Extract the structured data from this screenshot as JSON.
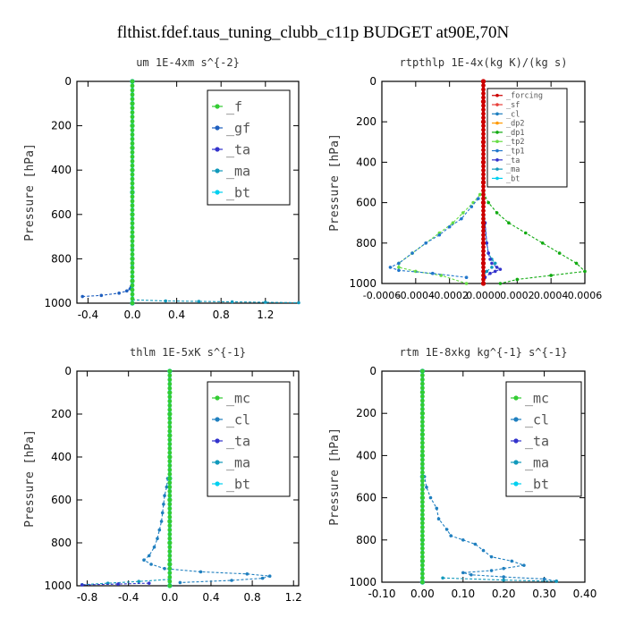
{
  "figure": {
    "title": "flthist.fdef.taus_tuning_clubb_c11p  BUDGET at90E,70N"
  },
  "colors": {
    "forcing": "#cc0000",
    "sf": "#e8403a",
    "f": "#33cc33",
    "gf": "#1f5fbf",
    "mc": "#33cc33",
    "cl": "#1f7fbf",
    "dp2": "#ff9900",
    "dp1": "#11aa11",
    "tp2": "#66dd44",
    "tp1": "#2277cc",
    "ta": "#3333cc",
    "ma": "#1199bb",
    "bt": "#00d0f0"
  },
  "chart_data": [
    {
      "type": "line",
      "title": "um  1E-4xm s^{-2}",
      "ylabel": "Pressure [hPa]",
      "xlim": [
        -0.5,
        1.5
      ],
      "ylim": [
        1000,
        0
      ],
      "xticks": [
        "-0.4",
        "0.0",
        "0.4",
        "0.8",
        "1.2"
      ],
      "xtick_values": [
        -0.4,
        0.0,
        0.4,
        0.8,
        1.2
      ],
      "yticks": [
        "0",
        "200",
        "400",
        "600",
        "800",
        "1000"
      ],
      "legend_position": "top-right",
      "legend": [
        "_f",
        "_gf",
        "_ta",
        "_ma",
        "_bt"
      ],
      "series": [
        {
          "name": "_gf",
          "color_key": "gf",
          "y": [
            970,
            965,
            955,
            945,
            935,
            925,
            915,
            905,
            895,
            880,
            860,
            830,
            800,
            750,
            700,
            600,
            500,
            400,
            300,
            200,
            100,
            0
          ],
          "x": [
            -0.45,
            -0.28,
            -0.12,
            -0.05,
            -0.02,
            -0.01,
            0,
            0,
            0,
            0,
            0,
            0,
            0,
            0,
            0,
            0,
            0,
            0,
            0,
            0,
            0,
            0
          ]
        },
        {
          "name": "_ma",
          "color_key": "ma",
          "y": [
            985,
            990,
            992,
            994,
            996,
            998
          ],
          "x": [
            0.0,
            0.3,
            0.6,
            0.9,
            1.2,
            1.5
          ]
        },
        {
          "name": "_f",
          "color_key": "f",
          "y": [
            1000,
            900,
            800,
            700,
            600,
            500,
            400,
            300,
            200,
            100,
            0
          ],
          "x": [
            0,
            0,
            0,
            0,
            0,
            0,
            0,
            0,
            0,
            0,
            0
          ]
        },
        {
          "name": "_ta",
          "color_key": "ta",
          "y": [
            1000,
            500,
            0
          ],
          "x": [
            0,
            0,
            0
          ]
        },
        {
          "name": "_bt",
          "color_key": "bt",
          "y": [
            1000,
            500,
            0
          ],
          "x": [
            0,
            0,
            0
          ]
        }
      ]
    },
    {
      "type": "line",
      "title": "rtpthlp  1E-4x(kg K)/(kg s)",
      "ylabel": "Pressure [hPa]",
      "xlim": [
        -0.0006,
        0.0006
      ],
      "ylim": [
        1000,
        0
      ],
      "xticks": [
        "-0.0006",
        "-0.0004",
        "-0.0002",
        "0.0000",
        "0.0002",
        "0.0004",
        "0.0006"
      ],
      "xtick_values": [
        -0.0006,
        -0.0004,
        -0.0002,
        0.0,
        0.0002,
        0.0004,
        0.0006
      ],
      "yticks": [
        "0",
        "200",
        "400",
        "600",
        "800",
        "1000"
      ],
      "legend_position": "top-right",
      "legend": [
        "_forcing",
        "_sf",
        "_cl",
        "_dp2",
        "_dp1",
        "_tp2",
        "_tp1",
        "_ta",
        "_ma",
        "_bt"
      ],
      "series": [
        {
          "name": "_dp1",
          "color_key": "dp1",
          "y": [
            550,
            600,
            650,
            700,
            750,
            800,
            850,
            900,
            940,
            960,
            980,
            1000
          ],
          "x": [
            0,
            3e-05,
            8e-05,
            0.00015,
            0.00025,
            0.00035,
            0.00045,
            0.00055,
            0.0006,
            0.0004,
            0.0002,
            0.0001
          ]
        },
        {
          "name": "_tp2",
          "color_key": "tp2",
          "y": [
            560,
            600,
            650,
            700,
            750,
            800,
            850,
            900,
            920,
            940,
            960,
            1000
          ],
          "x": [
            -2e-05,
            -6e-05,
            -0.00012,
            -0.00018,
            -0.00026,
            -0.00034,
            -0.00042,
            -0.0005,
            -0.0005,
            -0.0004,
            -0.00025,
            -0.0001
          ]
        },
        {
          "name": "_tp1",
          "color_key": "tp1",
          "y": [
            580,
            620,
            680,
            720,
            760,
            800,
            850,
            900,
            920,
            935,
            950,
            970
          ],
          "x": [
            -3e-05,
            -7e-05,
            -0.00013,
            -0.0002,
            -0.00026,
            -0.00034,
            -0.00042,
            -0.0005,
            -0.00055,
            -0.0005,
            -0.0003,
            -0.0001
          ]
        },
        {
          "name": "_ma",
          "color_key": "ma",
          "y": [
            600,
            700,
            800,
            850,
            880,
            900,
            920,
            940,
            960
          ],
          "x": [
            0,
            1e-05,
            2e-05,
            3e-05,
            5e-05,
            7e-05,
            5e-05,
            2e-05,
            0
          ]
        },
        {
          "name": "_ta",
          "color_key": "ta",
          "y": [
            700,
            800,
            850,
            880,
            900,
            920,
            930,
            940,
            950,
            970
          ],
          "x": [
            1e-05,
            2e-05,
            3e-05,
            4e-05,
            5e-05,
            8e-05,
            0.0001,
            7e-05,
            4e-05,
            1e-05
          ]
        },
        {
          "name": "_sf",
          "color_key": "sf",
          "y": [
            1000,
            900,
            800,
            700,
            600,
            500,
            400,
            300,
            200,
            100,
            0
          ],
          "x": [
            0,
            0,
            0,
            0,
            0,
            0,
            0,
            0,
            0,
            0,
            0
          ]
        },
        {
          "name": "_forcing",
          "color_key": "forcing",
          "y": [
            1000,
            900,
            800,
            700,
            600,
            500,
            400,
            300,
            200,
            100,
            0
          ],
          "x": [
            0,
            0,
            0,
            0,
            0,
            0,
            0,
            0,
            0,
            0,
            0
          ]
        }
      ]
    },
    {
      "type": "line",
      "title": "thlm  1E-5xK s^{-1}",
      "ylabel": "Pressure [hPa]",
      "xlim": [
        -0.9,
        1.25
      ],
      "ylim": [
        1000,
        0
      ],
      "xticks": [
        "-0.8",
        "-0.4",
        "0.0",
        "0.4",
        "0.8",
        "1.2"
      ],
      "xtick_values": [
        -0.8,
        -0.4,
        0.0,
        0.4,
        0.8,
        1.2
      ],
      "yticks": [
        "0",
        "200",
        "400",
        "600",
        "800",
        "1000"
      ],
      "legend_position": "top-right",
      "legend": [
        "_mc",
        "_cl",
        "_ta",
        "_ma",
        "_bt"
      ],
      "series": [
        {
          "name": "_cl",
          "color_key": "cl",
          "y": [
            500,
            540,
            580,
            620,
            660,
            700,
            740,
            780,
            820,
            860,
            880,
            900,
            920,
            935,
            945,
            955,
            965,
            975,
            985
          ],
          "x": [
            -0.02,
            -0.03,
            -0.05,
            -0.06,
            -0.07,
            -0.08,
            -0.1,
            -0.12,
            -0.15,
            -0.2,
            -0.25,
            -0.18,
            -0.05,
            0.3,
            0.75,
            0.97,
            0.9,
            0.6,
            0.1
          ]
        },
        {
          "name": "_ma",
          "color_key": "ma",
          "y": [
            970,
            980,
            988,
            995
          ],
          "x": [
            0,
            -0.3,
            -0.6,
            -0.85
          ]
        },
        {
          "name": "_ta",
          "color_key": "ta",
          "y": [
            988,
            992,
            996
          ],
          "x": [
            -0.2,
            -0.5,
            -0.85
          ]
        },
        {
          "name": "_mc",
          "color_key": "mc",
          "y": [
            1000,
            900,
            800,
            700,
            600,
            500,
            400,
            300,
            200,
            100,
            0
          ],
          "x": [
            0,
            0,
            0,
            0,
            0,
            0,
            0,
            0,
            0,
            0,
            0
          ]
        },
        {
          "name": "_bt",
          "color_key": "bt",
          "y": [
            1000,
            500,
            0
          ],
          "x": [
            0,
            0,
            0
          ]
        }
      ]
    },
    {
      "type": "line",
      "title": "rtm  1E-8xkg kg^{-1} s^{-1}",
      "ylabel": "Pressure [hPa]",
      "xlim": [
        -0.1,
        0.4
      ],
      "ylim": [
        1000,
        0
      ],
      "xticks": [
        "-0.10",
        "0.00",
        "0.10",
        "0.20",
        "0.30",
        "0.40"
      ],
      "xtick_values": [
        -0.1,
        0.0,
        0.1,
        0.2,
        0.3,
        0.4
      ],
      "yticks": [
        "0",
        "200",
        "400",
        "600",
        "800",
        "1000"
      ],
      "legend_position": "top-right",
      "legend": [
        "_mc",
        "_cl",
        "_ta",
        "_ma",
        "_bt"
      ],
      "series": [
        {
          "name": "_cl",
          "color_key": "cl",
          "y": [
            450,
            500,
            550,
            600,
            650,
            700,
            750,
            780,
            800,
            820,
            850,
            880,
            900,
            920,
            935,
            945,
            955,
            965,
            975,
            985,
            995
          ],
          "x": [
            0,
            0.005,
            0.01,
            0.02,
            0.035,
            0.04,
            0.06,
            0.07,
            0.1,
            0.13,
            0.15,
            0.17,
            0.22,
            0.25,
            0.2,
            0.17,
            0.1,
            0.12,
            0.2,
            0.3,
            0.33
          ]
        },
        {
          "name": "_ma",
          "color_key": "ma",
          "y": [
            980,
            990,
            996
          ],
          "x": [
            0.05,
            0.2,
            0.33
          ]
        },
        {
          "name": "_mc",
          "color_key": "mc",
          "y": [
            1000,
            900,
            800,
            700,
            600,
            500,
            400,
            300,
            200,
            100,
            0
          ],
          "x": [
            0,
            0,
            0,
            0,
            0,
            0,
            0,
            0,
            0,
            0,
            0
          ]
        },
        {
          "name": "_ta",
          "color_key": "ta",
          "y": [
            1000,
            500,
            0
          ],
          "x": [
            0,
            0,
            0
          ]
        },
        {
          "name": "_bt",
          "color_key": "bt",
          "y": [
            1000,
            500,
            0
          ],
          "x": [
            0,
            0,
            0
          ]
        }
      ]
    }
  ]
}
